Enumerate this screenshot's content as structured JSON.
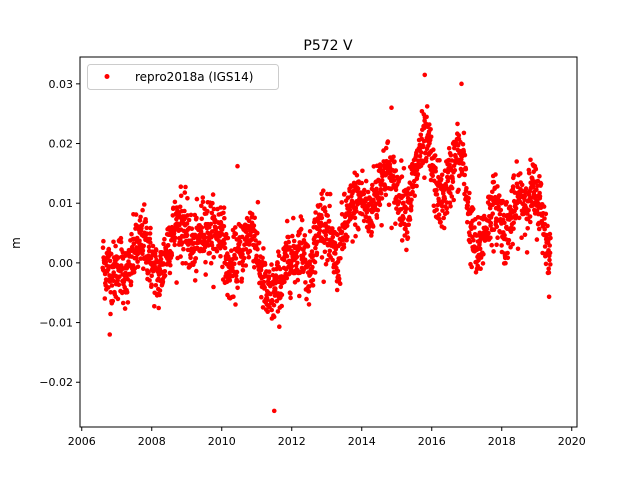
{
  "chart_data": {
    "type": "scatter",
    "title": "P572 V",
    "xlabel": "",
    "ylabel": "m",
    "xlim": [
      2005.95,
      2020.15
    ],
    "ylim": [
      -0.0275,
      0.0345
    ],
    "xticks": [
      2006,
      2008,
      2010,
      2012,
      2014,
      2016,
      2018,
      2020
    ],
    "xtick_labels": [
      "2006",
      "2008",
      "2010",
      "2012",
      "2014",
      "2016",
      "2018",
      "2020"
    ],
    "yticks": [
      -0.02,
      -0.01,
      0.0,
      0.01,
      0.02,
      0.03
    ],
    "ytick_labels": [
      "−0.02",
      "−0.01",
      "0.00",
      "0.01",
      "0.02",
      "0.03"
    ],
    "legend": {
      "position": "top-left",
      "entries": [
        "repro2018a (IGS14)"
      ]
    },
    "grid": false,
    "series": [
      {
        "name": "repro2018a (IGS14)",
        "color": "#ff0000",
        "marker": "dot",
        "note": "daily positions, approximated as running centerline with scatter",
        "x": [
          2006.6,
          2006.9,
          2007.1,
          2007.3,
          2007.5,
          2007.8,
          2008.0,
          2008.2,
          2008.5,
          2008.8,
          2009.0,
          2009.2,
          2009.5,
          2009.8,
          2010.0,
          2010.2,
          2010.4,
          2010.7,
          2010.9,
          2011.1,
          2011.3,
          2011.5,
          2011.7,
          2011.9,
          2012.1,
          2012.3,
          2012.5,
          2012.7,
          2012.9,
          2013.1,
          2013.3,
          2013.5,
          2013.8,
          2014.0,
          2014.2,
          2014.5,
          2014.7,
          2014.9,
          2015.1,
          2015.3,
          2015.5,
          2015.7,
          2015.9,
          2016.1,
          2016.3,
          2016.5,
          2016.7,
          2016.9,
          2017.1,
          2017.3,
          2017.5,
          2017.7,
          2017.9,
          2018.1,
          2018.3,
          2018.5,
          2018.7,
          2018.9,
          2019.1,
          2019.3,
          2019.4
        ],
        "y": [
          0.0,
          -0.002,
          0.0,
          -0.003,
          0.002,
          0.004,
          0.0,
          -0.003,
          0.004,
          0.007,
          0.005,
          0.002,
          0.006,
          0.005,
          0.006,
          -0.002,
          0.0,
          0.004,
          0.006,
          -0.001,
          -0.006,
          -0.005,
          -0.003,
          0.001,
          0.001,
          0.003,
          -0.002,
          0.005,
          0.008,
          0.003,
          0.0,
          0.006,
          0.01,
          0.011,
          0.008,
          0.013,
          0.016,
          0.013,
          0.011,
          0.009,
          0.014,
          0.019,
          0.02,
          0.013,
          0.01,
          0.014,
          0.018,
          0.017,
          0.006,
          0.001,
          0.005,
          0.009,
          0.009,
          0.005,
          0.008,
          0.011,
          0.01,
          0.012,
          0.01,
          0.003,
          0.001
        ],
        "scatter_sigma": 0.0027,
        "outliers": [
          [
            2011.5,
            -0.0248
          ],
          [
            2015.8,
            0.0315
          ],
          [
            2016.85,
            0.03
          ],
          [
            2014.85,
            0.026
          ],
          [
            2010.45,
            0.0162
          ],
          [
            2006.8,
            -0.012
          ]
        ]
      }
    ]
  }
}
